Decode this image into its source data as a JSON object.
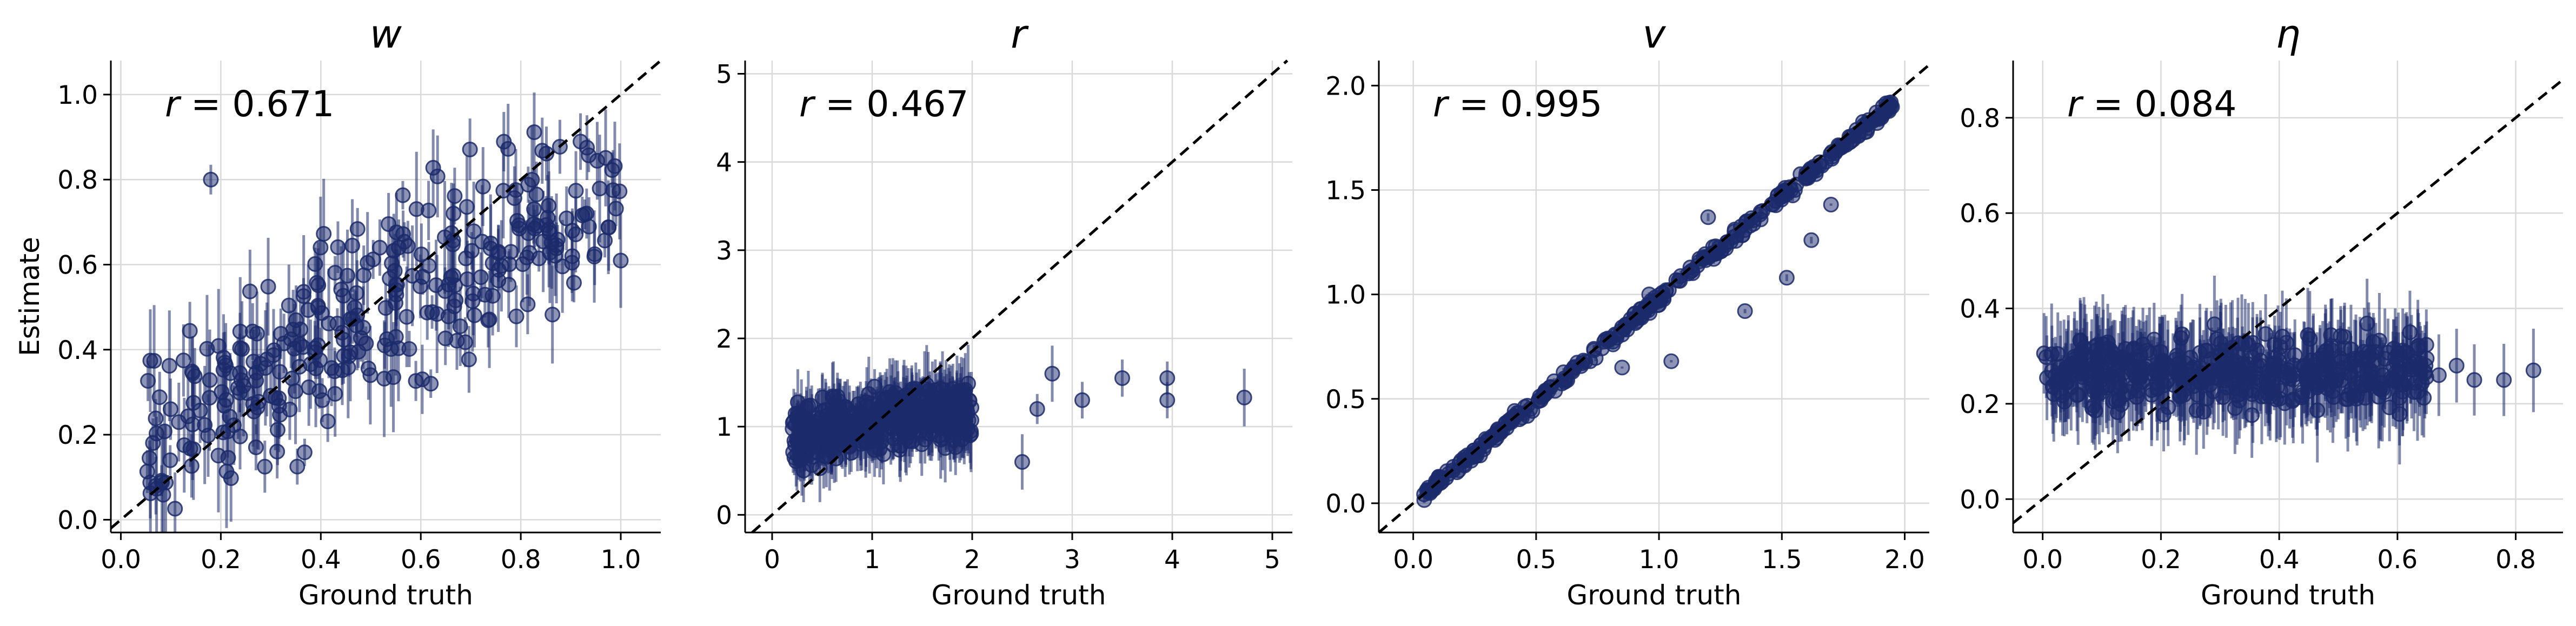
{
  "chart_data": [
    {
      "type": "scatter",
      "title": "w",
      "xlabel": "Ground truth",
      "ylabel": "Estimate",
      "annotation": {
        "symbol": "r",
        "text": " = 0.671"
      },
      "xlim": [
        -0.02,
        1.08
      ],
      "ylim": [
        -0.03,
        1.08
      ],
      "xticks": [
        "0.0",
        "0.2",
        "0.4",
        "0.6",
        "0.8",
        "1.0"
      ],
      "yticks": [
        "0.0",
        "0.2",
        "0.4",
        "0.6",
        "0.8",
        "1.0"
      ],
      "grid": true,
      "identity_line": true,
      "points": {
        "count": 320,
        "x_range": [
          0.05,
          1.0
        ],
        "slope": 0.62,
        "intercept": 0.17,
        "spread": 0.11,
        "err_half": [
          0.03,
          0.14
        ],
        "outliers": [
          [
            0.18,
            0.8
          ],
          [
            0.07,
            0.08
          ],
          [
            0.62,
            0.32
          ]
        ]
      }
    },
    {
      "type": "scatter",
      "title": "r",
      "xlabel": "Ground truth",
      "ylabel": "",
      "annotation": {
        "symbol": "r",
        "text": " = 0.467"
      },
      "xlim": [
        -0.27,
        5.2
      ],
      "ylim": [
        -0.2,
        5.15
      ],
      "xticks": [
        "0",
        "1",
        "2",
        "3",
        "4",
        "5"
      ],
      "yticks": [
        "0",
        "1",
        "2",
        "3",
        "4",
        "5"
      ],
      "grid": true,
      "identity_line": true,
      "points": {
        "count": 420,
        "x_range": [
          0.2,
          2.0
        ],
        "slope": 0.18,
        "intercept": 0.85,
        "spread": 0.18,
        "err_half": [
          0.15,
          0.45
        ],
        "outliers": [
          [
            2.5,
            0.6
          ],
          [
            3.5,
            1.55
          ],
          [
            3.95,
            1.55
          ],
          [
            3.95,
            1.3
          ],
          [
            4.72,
            1.33
          ],
          [
            2.8,
            1.6
          ],
          [
            3.1,
            1.3
          ],
          [
            2.65,
            1.2
          ]
        ]
      }
    },
    {
      "type": "scatter",
      "title": "v",
      "xlabel": "Ground truth",
      "ylabel": "",
      "annotation": {
        "symbol": "r",
        "text": " = 0.995"
      },
      "xlim": [
        -0.14,
        2.1
      ],
      "ylim": [
        -0.14,
        2.12
      ],
      "xticks": [
        "0.0",
        "0.5",
        "1.0",
        "1.5",
        "2.0"
      ],
      "yticks": [
        "0.0",
        "0.5",
        "1.0",
        "1.5",
        "2.0"
      ],
      "grid": true,
      "identity_line": true,
      "points": {
        "count": 360,
        "x_range": [
          0.03,
          1.95
        ],
        "slope": 0.98,
        "intercept": 0.0,
        "spread": 0.015,
        "err_half": [
          0.005,
          0.03
        ],
        "outliers": [
          [
            1.05,
            0.68
          ],
          [
            0.72,
            0.68
          ],
          [
            0.85,
            0.65
          ],
          [
            1.35,
            0.92
          ],
          [
            1.52,
            1.08
          ],
          [
            1.7,
            1.43
          ],
          [
            1.62,
            1.26
          ],
          [
            1.0,
            0.95
          ],
          [
            1.2,
            1.37
          ],
          [
            0.96,
            1.0
          ]
        ]
      }
    },
    {
      "type": "scatter",
      "title": "η",
      "xlabel": "Ground truth",
      "ylabel": "",
      "annotation": {
        "symbol": "r",
        "text": " = 0.084"
      },
      "xlim": [
        -0.05,
        0.88
      ],
      "ylim": [
        -0.07,
        0.92
      ],
      "xticks": [
        "0.0",
        "0.2",
        "0.4",
        "0.6",
        "0.8"
      ],
      "yticks": [
        "0.0",
        "0.2",
        "0.4",
        "0.6",
        "0.8"
      ],
      "grid": true,
      "identity_line": true,
      "points": {
        "count": 460,
        "x_range": [
          0.0,
          0.65
        ],
        "slope": 0.0,
        "intercept": 0.265,
        "spread": 0.035,
        "err_half": [
          0.06,
          0.11
        ],
        "outliers": [
          [
            0.7,
            0.28
          ],
          [
            0.73,
            0.25
          ],
          [
            0.78,
            0.25
          ],
          [
            0.83,
            0.27
          ],
          [
            0.67,
            0.26
          ]
        ]
      }
    }
  ],
  "colors": {
    "points": "#1b2a6b",
    "identity": "#000000"
  },
  "seed": 1234
}
